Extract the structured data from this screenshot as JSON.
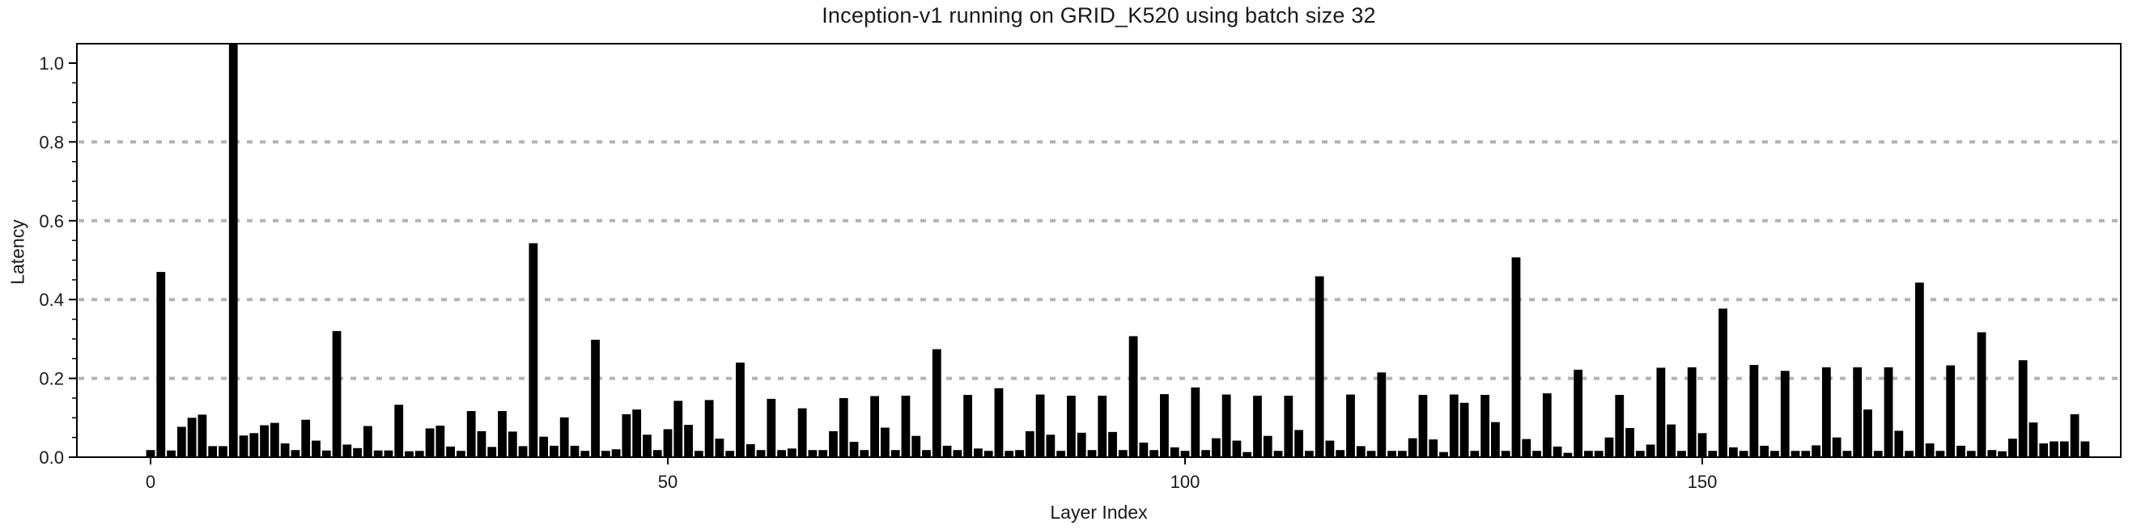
{
  "title": "Inception-v1 running on GRID_K520 using batch size 32",
  "chart_data": {
    "type": "bar",
    "title": "Inception-v1 running on GRID_K520 using batch size 32",
    "xlabel": "Layer Index",
    "ylabel": "Latency",
    "bar_color": "#000000",
    "background_color": "#ffffff",
    "grid": {
      "y_values": [
        0.2,
        0.4,
        0.6,
        0.8
      ],
      "style": "dotted",
      "color": "#b3b3b3"
    },
    "x_ticks": [
      0,
      50,
      100,
      150
    ],
    "x_tick_labels": [
      "0",
      "50",
      "100",
      "150"
    ],
    "y_ticks": [
      0.0,
      0.2,
      0.4,
      0.6,
      0.8,
      1.0
    ],
    "y_tick_labels": [
      "0.0",
      "0.2",
      "0.4",
      "0.6",
      "0.8",
      "1.0"
    ],
    "y_minor_tick_step": 0.05,
    "ylim": [
      0,
      1.05
    ],
    "xlim": [
      -7.1,
      190
    ],
    "legend": "none",
    "num_bars": 188,
    "x_start_index": 0,
    "values": [
      0.018,
      0.47,
      0.017,
      0.077,
      0.1,
      0.108,
      0.028,
      0.028,
      1.048,
      0.055,
      0.061,
      0.081,
      0.087,
      0.035,
      0.018,
      0.095,
      0.042,
      0.017,
      0.32,
      0.032,
      0.023,
      0.079,
      0.017,
      0.017,
      0.133,
      0.015,
      0.016,
      0.073,
      0.08,
      0.027,
      0.016,
      0.117,
      0.066,
      0.026,
      0.117,
      0.065,
      0.028,
      0.543,
      0.052,
      0.029,
      0.101,
      0.029,
      0.016,
      0.298,
      0.016,
      0.02,
      0.109,
      0.121,
      0.057,
      0.018,
      0.071,
      0.143,
      0.082,
      0.016,
      0.145,
      0.047,
      0.016,
      0.24,
      0.033,
      0.018,
      0.148,
      0.018,
      0.022,
      0.124,
      0.018,
      0.018,
      0.066,
      0.15,
      0.039,
      0.018,
      0.155,
      0.075,
      0.018,
      0.156,
      0.054,
      0.018,
      0.274,
      0.029,
      0.018,
      0.158,
      0.022,
      0.016,
      0.175,
      0.016,
      0.018,
      0.066,
      0.159,
      0.057,
      0.016,
      0.156,
      0.062,
      0.018,
      0.156,
      0.064,
      0.018,
      0.307,
      0.037,
      0.018,
      0.16,
      0.025,
      0.016,
      0.177,
      0.018,
      0.048,
      0.159,
      0.042,
      0.013,
      0.156,
      0.054,
      0.016,
      0.156,
      0.069,
      0.016,
      0.459,
      0.042,
      0.018,
      0.159,
      0.028,
      0.016,
      0.215,
      0.016,
      0.016,
      0.048,
      0.158,
      0.045,
      0.013,
      0.159,
      0.138,
      0.016,
      0.158,
      0.089,
      0.016,
      0.507,
      0.046,
      0.016,
      0.162,
      0.027,
      0.011,
      0.222,
      0.016,
      0.016,
      0.05,
      0.158,
      0.074,
      0.016,
      0.032,
      0.227,
      0.083,
      0.016,
      0.228,
      0.061,
      0.016,
      0.377,
      0.025,
      0.016,
      0.234,
      0.029,
      0.016,
      0.219,
      0.016,
      0.016,
      0.03,
      0.228,
      0.05,
      0.016,
      0.228,
      0.121,
      0.016,
      0.228,
      0.067,
      0.016,
      0.443,
      0.035,
      0.016,
      0.233,
      0.029,
      0.016,
      0.317,
      0.018,
      0.015,
      0.047,
      0.246,
      0.088,
      0.035,
      0.04,
      0.04,
      0.109,
      0.04
    ]
  }
}
